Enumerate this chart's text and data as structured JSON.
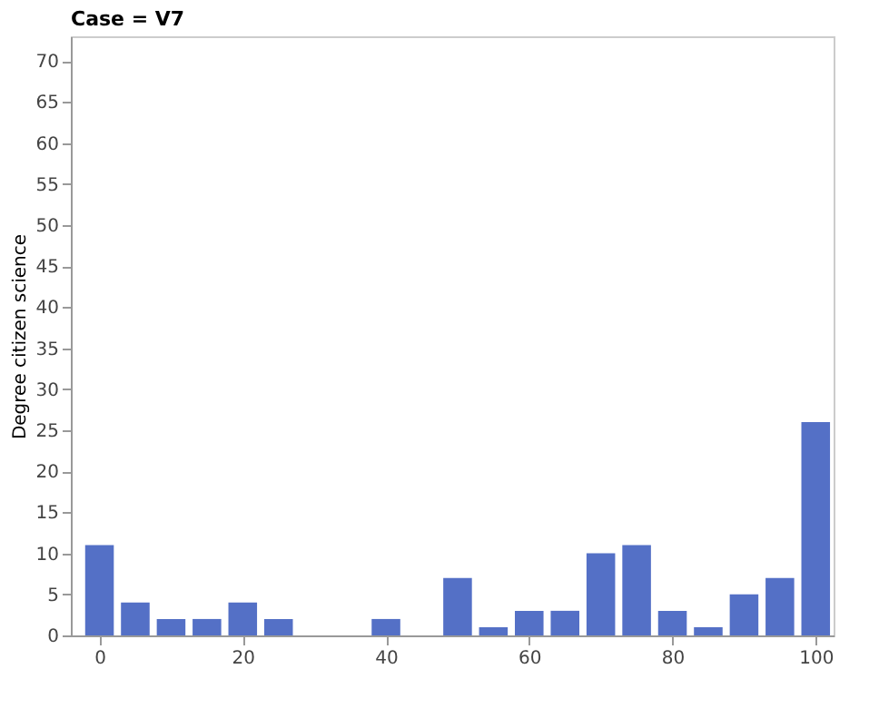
{
  "chart_data": {
    "type": "bar",
    "title": "Case = V7",
    "ylabel": "Degree citizen science",
    "x": [
      0,
      5,
      10,
      15,
      20,
      25,
      40,
      50,
      55,
      60,
      65,
      70,
      75,
      80,
      85,
      90,
      95,
      100
    ],
    "values": [
      11,
      4,
      2,
      2,
      4,
      2,
      2,
      7,
      1,
      3,
      3,
      10,
      11,
      3,
      1,
      5,
      7,
      26
    ],
    "color": "#5470c6",
    "xlim": [
      -4,
      102.5
    ],
    "xticks": [
      0,
      20,
      40,
      60,
      80,
      100
    ],
    "ylim": [
      0,
      73
    ],
    "yticks": [
      0,
      5,
      10,
      15,
      20,
      25,
      30,
      35,
      40,
      45,
      50,
      55,
      60,
      65,
      70
    ],
    "grid": false
  }
}
